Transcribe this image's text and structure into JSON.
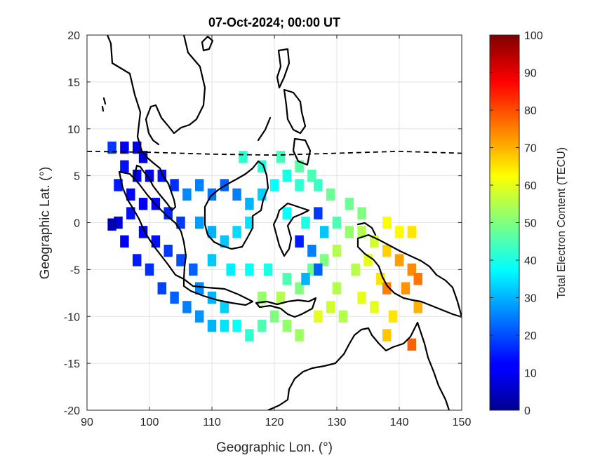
{
  "chart_data": {
    "type": "heatmap",
    "title": "07-Oct-2024; 00:00 UT",
    "xlabel": "Geographic Lon. (°)",
    "ylabel": "Geographic Lat. (°)",
    "xlim": [
      90,
      150
    ],
    "ylim": [
      -20,
      20
    ],
    "x_ticks": [
      90,
      100,
      110,
      120,
      130,
      140,
      150
    ],
    "y_ticks": [
      20,
      15,
      10,
      5,
      0,
      -5,
      -10,
      -15,
      -20
    ],
    "grid": true,
    "colorbar": {
      "label": "Total Electron Content (TECU)",
      "range": [
        0,
        100
      ],
      "ticks": [
        100,
        90,
        80,
        70,
        60,
        50,
        40,
        30,
        20,
        10,
        0
      ],
      "colormap": "jet"
    },
    "magnetic_equator_line": {
      "style": "dashed",
      "lon": [
        90,
        100,
        110,
        120,
        130,
        140,
        150
      ],
      "lat": [
        7.6,
        7.5,
        7.3,
        7.2,
        7.4,
        7.6,
        7.4
      ]
    },
    "tec_cells": [
      [
        94,
        8,
        18
      ],
      [
        96,
        8,
        12
      ],
      [
        98,
        8,
        10
      ],
      [
        99,
        7,
        9
      ],
      [
        96,
        6,
        14
      ],
      [
        98,
        5,
        12
      ],
      [
        100,
        5,
        11
      ],
      [
        102,
        5,
        14
      ],
      [
        104,
        4,
        17
      ],
      [
        95,
        4,
        15
      ],
      [
        97,
        3,
        13
      ],
      [
        99,
        2,
        12
      ],
      [
        101,
        2,
        13
      ],
      [
        103,
        1,
        16
      ],
      [
        105,
        0,
        18
      ],
      [
        97,
        1,
        14
      ],
      [
        99,
        -1,
        12
      ],
      [
        101,
        -2,
        14
      ],
      [
        103,
        -3,
        18
      ],
      [
        105,
        -4,
        20
      ],
      [
        107,
        -5,
        22
      ],
      [
        98,
        -4,
        15
      ],
      [
        100,
        -5,
        17
      ],
      [
        102,
        -7,
        19
      ],
      [
        104,
        -8,
        22
      ],
      [
        106,
        -9,
        25
      ],
      [
        108,
        -10,
        27
      ],
      [
        110,
        -11,
        30
      ],
      [
        95,
        0,
        8
      ],
      [
        96,
        -2,
        12
      ],
      [
        108,
        -7,
        26
      ],
      [
        110,
        -8,
        30
      ],
      [
        112,
        -9,
        33
      ],
      [
        112,
        -11,
        35
      ],
      [
        114,
        -11,
        38
      ],
      [
        116,
        -12,
        42
      ],
      [
        118,
        -11,
        45
      ],
      [
        120,
        -10,
        50
      ],
      [
        122,
        -11,
        52
      ],
      [
        124,
        -12,
        53
      ],
      [
        106,
        3,
        26
      ],
      [
        108,
        4,
        25
      ],
      [
        110,
        3,
        24
      ],
      [
        112,
        4,
        22
      ],
      [
        114,
        3,
        25
      ],
      [
        116,
        2,
        30
      ],
      [
        118,
        3,
        33
      ],
      [
        120,
        4,
        38
      ],
      [
        122,
        5,
        40
      ],
      [
        124,
        4,
        42
      ],
      [
        126,
        5,
        45
      ],
      [
        115,
        7,
        42
      ],
      [
        118,
        6,
        41
      ],
      [
        121,
        7,
        44
      ],
      [
        124,
        6,
        46
      ],
      [
        127,
        4,
        43
      ],
      [
        129,
        3,
        48
      ],
      [
        108,
        0,
        28
      ],
      [
        110,
        -1,
        30
      ],
      [
        112,
        -2,
        32
      ],
      [
        114,
        -1,
        34
      ],
      [
        116,
        0,
        35
      ],
      [
        110,
        -4,
        32
      ],
      [
        113,
        -5,
        36
      ],
      [
        116,
        -5,
        38
      ],
      [
        119,
        -5,
        40
      ],
      [
        122,
        -6,
        45
      ],
      [
        124,
        -7,
        50
      ],
      [
        121,
        -8,
        55
      ],
      [
        118,
        -8,
        52
      ],
      [
        126,
        -5,
        48
      ],
      [
        128,
        -4,
        50
      ],
      [
        130,
        -3,
        55
      ],
      [
        132,
        -1,
        52
      ],
      [
        134,
        -1,
        55
      ],
      [
        136,
        -2,
        58
      ],
      [
        135,
        -4,
        60
      ],
      [
        133,
        -5,
        55
      ],
      [
        130,
        -7,
        55
      ],
      [
        129,
        -9,
        58
      ],
      [
        127,
        -10,
        60
      ],
      [
        131,
        -10,
        55
      ],
      [
        134,
        -8,
        60
      ],
      [
        137,
        -6,
        65
      ],
      [
        138,
        0,
        62
      ],
      [
        140,
        -1,
        63
      ],
      [
        142,
        -1,
        65
      ],
      [
        138,
        -3,
        67
      ],
      [
        140,
        -4,
        72
      ],
      [
        142,
        -5,
        74
      ],
      [
        143,
        -6,
        76
      ],
      [
        141,
        -7,
        73
      ],
      [
        138,
        -7,
        75
      ],
      [
        143,
        -9,
        70
      ],
      [
        136,
        -9,
        60
      ],
      [
        139,
        -10,
        65
      ],
      [
        138,
        -12,
        68
      ],
      [
        142,
        -13,
        78
      ],
      [
        122,
        1,
        38
      ],
      [
        125,
        0,
        40
      ],
      [
        127,
        1,
        18
      ],
      [
        128,
        -1,
        32
      ],
      [
        126,
        -3,
        25
      ],
      [
        124,
        -2,
        15
      ],
      [
        130,
        0,
        45
      ],
      [
        132,
        2,
        48
      ],
      [
        134,
        1,
        50
      ],
      [
        127,
        -5,
        22
      ],
      [
        125,
        -6,
        30
      ],
      [
        94,
        -0.2,
        5
      ]
    ]
  }
}
